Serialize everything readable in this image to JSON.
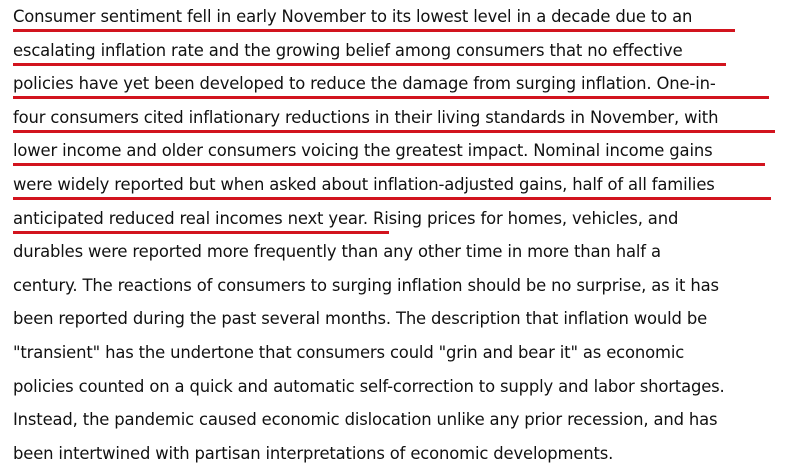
{
  "paragraph": {
    "lines": [
      "Consumer sentiment fell in early November to its lowest level in a decade due to an",
      "escalating inflation rate and the growing belief among consumers that no effective",
      "policies have yet been developed to reduce the damage from surging inflation. One-in-",
      "four consumers cited inflationary reductions in their living standards in November, with",
      "lower income and older consumers voicing the greatest impact. Nominal income gains",
      "were widely reported but when asked about inflation-adjusted gains, half of all families",
      "anticipated reduced real incomes next year. Rising prices for homes, vehicles, and",
      "durables were reported more frequently than any other time in more than half a",
      "century. The reactions of consumers to surging inflation should be no surprise, as it has",
      "been reported during the past several months. The description that inflation would be",
      "\"transient\" has the undertone that consumers could \"grin and bear it\" as economic",
      "policies counted on a quick and automatic self-correction to supply and labor shortages.",
      "Instead, the pandemic caused economic dislocation unlike any prior recession, and has",
      "been intertwined with partisan interpretations of economic developments."
    ]
  },
  "highlight_color": "#d2141e"
}
